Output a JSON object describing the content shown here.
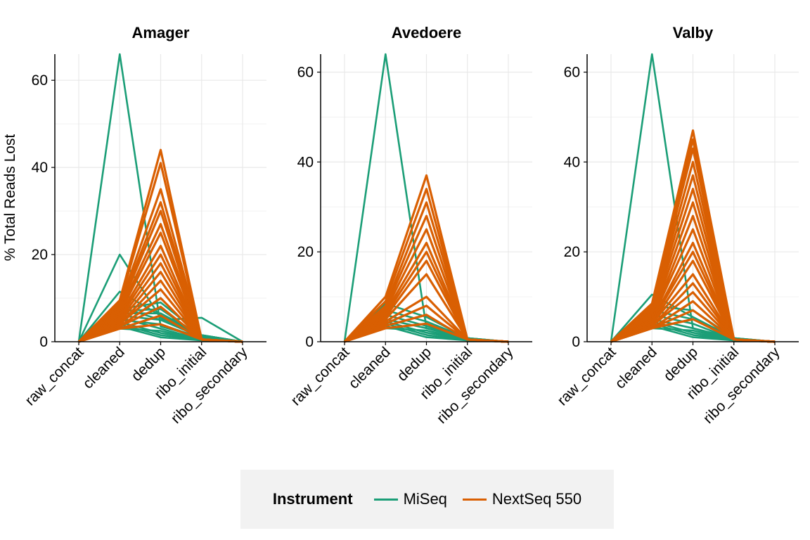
{
  "chart_data": {
    "type": "line",
    "ylabel": "% Total Reads Lost",
    "x": [
      "raw_concat",
      "cleaned",
      "dedup",
      "ribo_initial",
      "ribo_secondary"
    ],
    "legend": {
      "title": "Instrument",
      "position": "bottom",
      "items": [
        {
          "name": "MiSeq",
          "color": "#1b9e77"
        },
        {
          "name": "NextSeq 550",
          "color": "#d95f02"
        }
      ]
    },
    "grid": true,
    "panels": [
      {
        "title": "Amager",
        "ylim": [
          0,
          66
        ],
        "yticks": [
          0,
          20,
          40,
          60
        ],
        "series": [
          {
            "group": "MiSeq",
            "values": [
              0,
              66,
              3.5,
              1.0,
              0
            ]
          },
          {
            "group": "MiSeq",
            "values": [
              0,
              20,
              5.5,
              1.2,
              0
            ]
          },
          {
            "group": "MiSeq",
            "values": [
              0,
              11.5,
              6.0,
              1.5,
              0
            ]
          },
          {
            "group": "MiSeq",
            "values": [
              0,
              8.0,
              5.0,
              5.5,
              0
            ]
          },
          {
            "group": "MiSeq",
            "values": [
              0,
              7.5,
              9.0,
              1.5,
              0
            ]
          },
          {
            "group": "MiSeq",
            "values": [
              0,
              7.0,
              7.5,
              1.0,
              0
            ]
          },
          {
            "group": "MiSeq",
            "values": [
              0,
              6.5,
              6.5,
              1.5,
              0
            ]
          },
          {
            "group": "MiSeq",
            "values": [
              0,
              6.0,
              5.0,
              1.0,
              0
            ]
          },
          {
            "group": "MiSeq",
            "values": [
              0,
              5.5,
              3.0,
              0.5,
              0
            ]
          },
          {
            "group": "MiSeq",
            "values": [
              0,
              5.0,
              4.0,
              0.8,
              0
            ]
          },
          {
            "group": "MiSeq",
            "values": [
              0,
              4.5,
              2.0,
              0.5,
              0
            ]
          },
          {
            "group": "MiSeq",
            "values": [
              0,
              4.0,
              1.5,
              0.4,
              0
            ]
          },
          {
            "group": "MiSeq",
            "values": [
              0,
              3.5,
              1.0,
              0.3,
              0
            ]
          },
          {
            "group": "MiSeq",
            "values": [
              0,
              3.0,
              2.5,
              0.4,
              0
            ]
          },
          {
            "group": "NextSeq 550",
            "values": [
              0,
              9.5,
              44,
              0.5,
              0
            ]
          },
          {
            "group": "NextSeq 550",
            "values": [
              0,
              9.0,
              41,
              0.5,
              0
            ]
          },
          {
            "group": "NextSeq 550",
            "values": [
              0,
              8.5,
              35,
              0.5,
              0
            ]
          },
          {
            "group": "NextSeq 550",
            "values": [
              0,
              8.0,
              32,
              0.5,
              0
            ]
          },
          {
            "group": "NextSeq 550",
            "values": [
              0,
              7.5,
              30,
              0.5,
              0
            ]
          },
          {
            "group": "NextSeq 550",
            "values": [
              0,
              7.0,
              27,
              0.5,
              0
            ]
          },
          {
            "group": "NextSeq 550",
            "values": [
              0,
              6.5,
              25,
              0.5,
              0
            ]
          },
          {
            "group": "NextSeq 550",
            "values": [
              0,
              6.0,
              22,
              0.5,
              0
            ]
          },
          {
            "group": "NextSeq 550",
            "values": [
              0,
              5.5,
              20,
              0.5,
              0
            ]
          },
          {
            "group": "NextSeq 550",
            "values": [
              0,
              5.0,
              18,
              0.5,
              0
            ]
          },
          {
            "group": "NextSeq 550",
            "values": [
              0,
              4.5,
              16,
              0.5,
              0
            ]
          },
          {
            "group": "NextSeq 550",
            "values": [
              0,
              4.0,
              14,
              0.5,
              0
            ]
          },
          {
            "group": "NextSeq 550",
            "values": [
              0,
              4.0,
              12,
              0.5,
              0
            ]
          },
          {
            "group": "NextSeq 550",
            "values": [
              0,
              3.5,
              10,
              0.5,
              0
            ]
          },
          {
            "group": "NextSeq 550",
            "values": [
              0,
              3.5,
              8,
              0.5,
              0
            ]
          },
          {
            "group": "NextSeq 550",
            "values": [
              0,
              3.0,
              6,
              0.5,
              0
            ]
          },
          {
            "group": "NextSeq 550",
            "values": [
              0,
              3.0,
              4,
              0.5,
              0
            ]
          }
        ]
      },
      {
        "title": "Avedoere",
        "ylim": [
          0,
          64
        ],
        "yticks": [
          0,
          20,
          40,
          60
        ],
        "series": [
          {
            "group": "MiSeq",
            "values": [
              0,
              64,
              3.0,
              0.8,
              0
            ]
          },
          {
            "group": "MiSeq",
            "values": [
              0,
              8.5,
              5.5,
              0.8,
              0
            ]
          },
          {
            "group": "MiSeq",
            "values": [
              0,
              7.0,
              4.5,
              0.8,
              0
            ]
          },
          {
            "group": "MiSeq",
            "values": [
              0,
              6.0,
              3.5,
              0.6,
              0
            ]
          },
          {
            "group": "MiSeq",
            "values": [
              0,
              5.0,
              3.0,
              0.5,
              0
            ]
          },
          {
            "group": "MiSeq",
            "values": [
              0,
              4.5,
              2.0,
              0.4,
              0
            ]
          },
          {
            "group": "MiSeq",
            "values": [
              0,
              4.0,
              1.5,
              0.3,
              0
            ]
          },
          {
            "group": "MiSeq",
            "values": [
              0,
              3.5,
              1.0,
              0.3,
              0
            ]
          },
          {
            "group": "MiSeq",
            "values": [
              0,
              3.0,
              2.5,
              0.4,
              0
            ]
          },
          {
            "group": "NextSeq 550",
            "values": [
              0,
              10,
              37,
              0.5,
              0
            ]
          },
          {
            "group": "NextSeq 550",
            "values": [
              0,
              9.0,
              34,
              0.5,
              0
            ]
          },
          {
            "group": "NextSeq 550",
            "values": [
              0,
              8.0,
              31,
              0.5,
              0
            ]
          },
          {
            "group": "NextSeq 550",
            "values": [
              0,
              7.5,
              28,
              0.5,
              0
            ]
          },
          {
            "group": "NextSeq 550",
            "values": [
              0,
              7.0,
              25,
              0.5,
              0
            ]
          },
          {
            "group": "NextSeq 550",
            "values": [
              0,
              6.5,
              22,
              0.5,
              0
            ]
          },
          {
            "group": "NextSeq 550",
            "values": [
              0,
              6.0,
              20,
              0.5,
              0
            ]
          },
          {
            "group": "NextSeq 550",
            "values": [
              0,
              5.5,
              18,
              0.5,
              0
            ]
          },
          {
            "group": "NextSeq 550",
            "values": [
              0,
              5.0,
              15,
              0.5,
              0
            ]
          },
          {
            "group": "NextSeq 550",
            "values": [
              0,
              4.5,
              10,
              0.5,
              0
            ]
          },
          {
            "group": "NextSeq 550",
            "values": [
              0,
              4.0,
              8,
              0.5,
              0
            ]
          },
          {
            "group": "NextSeq 550",
            "values": [
              0,
              3.5,
              6,
              0.5,
              0
            ]
          },
          {
            "group": "NextSeq 550",
            "values": [
              0,
              3.0,
              4,
              0.5,
              0
            ]
          }
        ]
      },
      {
        "title": "Valby",
        "ylim": [
          0,
          64
        ],
        "yticks": [
          0,
          20,
          40,
          60
        ],
        "series": [
          {
            "group": "MiSeq",
            "values": [
              0,
              64,
              3.0,
              0.8,
              0
            ]
          },
          {
            "group": "MiSeq",
            "values": [
              0,
              10.5,
              5.5,
              0.8,
              0
            ]
          },
          {
            "group": "MiSeq",
            "values": [
              0,
              8.0,
              7.0,
              0.8,
              0
            ]
          },
          {
            "group": "MiSeq",
            "values": [
              0,
              7.0,
              5.0,
              0.6,
              0
            ]
          },
          {
            "group": "MiSeq",
            "values": [
              0,
              6.0,
              4.0,
              0.5,
              0
            ]
          },
          {
            "group": "MiSeq",
            "values": [
              0,
              5.0,
              3.0,
              0.4,
              0
            ]
          },
          {
            "group": "MiSeq",
            "values": [
              0,
              4.5,
              2.0,
              0.3,
              0
            ]
          },
          {
            "group": "MiSeq",
            "values": [
              0,
              4.0,
              1.5,
              0.3,
              0
            ]
          },
          {
            "group": "MiSeq",
            "values": [
              0,
              3.5,
              1.0,
              0.3,
              0
            ]
          },
          {
            "group": "MiSeq",
            "values": [
              0,
              3.0,
              2.5,
              0.4,
              0
            ]
          },
          {
            "group": "NextSeq 550",
            "values": [
              0,
              8.5,
              47,
              0.5,
              0
            ]
          },
          {
            "group": "NextSeq 550",
            "values": [
              0,
              8.0,
              45,
              0.5,
              0
            ]
          },
          {
            "group": "NextSeq 550",
            "values": [
              0,
              7.5,
              43,
              0.5,
              0
            ]
          },
          {
            "group": "NextSeq 550",
            "values": [
              0,
              7.0,
              40,
              0.5,
              0
            ]
          },
          {
            "group": "NextSeq 550",
            "values": [
              0,
              6.5,
              37,
              0.5,
              0
            ]
          },
          {
            "group": "NextSeq 550",
            "values": [
              0,
              6.0,
              34,
              0.5,
              0
            ]
          },
          {
            "group": "NextSeq 550",
            "values": [
              0,
              5.5,
              31,
              0.5,
              0
            ]
          },
          {
            "group": "NextSeq 550",
            "values": [
              0,
              5.0,
              28,
              0.5,
              0
            ]
          },
          {
            "group": "NextSeq 550",
            "values": [
              0,
              5.0,
              25,
              0.5,
              0
            ]
          },
          {
            "group": "NextSeq 550",
            "values": [
              0,
              4.5,
              22,
              0.5,
              0
            ]
          },
          {
            "group": "NextSeq 550",
            "values": [
              0,
              4.5,
              20,
              0.5,
              0
            ]
          },
          {
            "group": "NextSeq 550",
            "values": [
              0,
              4.0,
              18,
              0.5,
              0
            ]
          },
          {
            "group": "NextSeq 550",
            "values": [
              0,
              4.0,
              15,
              0.5,
              0
            ]
          },
          {
            "group": "NextSeq 550",
            "values": [
              0,
              3.5,
              13,
              0.5,
              0
            ]
          },
          {
            "group": "NextSeq 550",
            "values": [
              0,
              3.5,
              11,
              0.5,
              0
            ]
          },
          {
            "group": "NextSeq 550",
            "values": [
              0,
              3.0,
              9,
              0.5,
              0
            ]
          },
          {
            "group": "NextSeq 550",
            "values": [
              0,
              3.0,
              7,
              0.5,
              0
            ]
          },
          {
            "group": "NextSeq 550",
            "values": [
              0,
              3.0,
              5,
              0.5,
              0
            ]
          }
        ]
      }
    ]
  }
}
